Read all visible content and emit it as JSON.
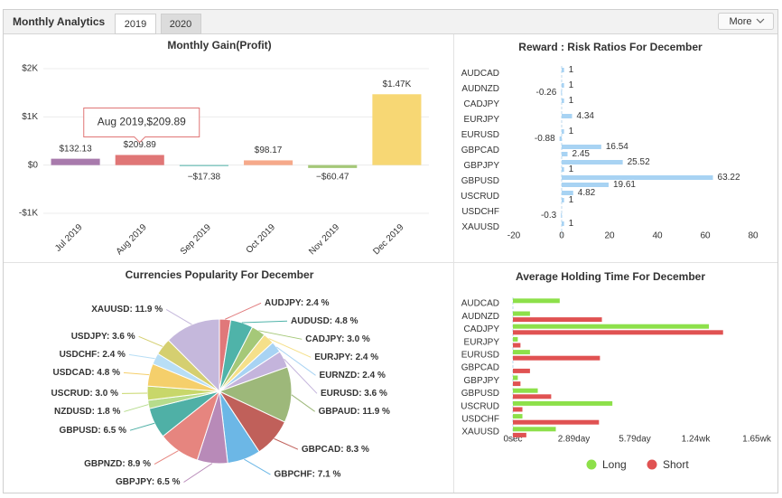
{
  "header": {
    "title": "Monthly Analytics",
    "tabs": [
      "2019",
      "2020"
    ],
    "button": "More"
  },
  "chart_data": [
    {
      "type": "bar",
      "title": "Monthly Gain(Profit)",
      "categories": [
        "Jul 2019",
        "Aug 2019",
        "Sep 2019",
        "Oct 2019",
        "Nov 2019",
        "Dec 2019"
      ],
      "values": [
        132.13,
        209.89,
        -17.38,
        98.17,
        -60.47,
        1470
      ],
      "value_labels": [
        "$132.13",
        "$209.89",
        "−$17.38",
        "$98.17",
        "−$60.47",
        "$1.47K"
      ],
      "colors": [
        "#a87aac",
        "#e07676",
        "#4fb3a9",
        "#f6a98a",
        "#a5c878",
        "#f7d774"
      ],
      "ylim": [
        -1000,
        2000
      ],
      "yticks": [
        {
          "value": -1000,
          "label": "-$1K"
        },
        {
          "value": 0,
          "label": "$0"
        },
        {
          "value": 1000,
          "label": "$1K"
        },
        {
          "value": 2000,
          "label": "$2K"
        }
      ],
      "grid": true,
      "annotation": "Aug 2019,$209.89"
    },
    {
      "type": "hbar",
      "title": "Reward : Risk Ratios For December",
      "categories": [
        "AUDCAD",
        "AUDNZD",
        "CADJPY",
        "EURJPY",
        "EURUSD",
        "GBPCAD",
        "GBPJPY",
        "GBPUSD",
        "USCRUD",
        "USDCHF",
        "XAUUSD"
      ],
      "series": [
        {
          "color": "#a8d3f3",
          "values": [
            1,
            1,
            1,
            4.34,
            1,
            16.54,
            25.52,
            63.22,
            4.82,
            null,
            1
          ]
        },
        {
          "color": "#a8d3f3",
          "values": [
            null,
            -0.26,
            null,
            null,
            -0.88,
            2.45,
            1,
            19.61,
            1,
            -0.3,
            null
          ]
        }
      ],
      "xlim": [
        -20,
        80
      ],
      "xticks": [
        -20,
        0,
        20,
        40,
        60,
        80
      ],
      "grid": false
    },
    {
      "type": "pie",
      "title": "Currencies Popularity For December",
      "values": [
        2.4,
        4.8,
        3.0,
        2.4,
        2.4,
        3.6,
        11.9,
        8.3,
        7.1,
        6.5,
        8.9,
        6.5,
        1.8,
        3.0,
        4.8,
        2.4,
        3.6,
        11.9
      ],
      "value_labels": [
        "AUDJPY: 2.4 %",
        "AUDUSD: 4.8 %",
        "CADJPY: 3.0 %",
        "EURJPY: 2.4 %",
        "EURNZD: 2.4 %",
        "EURUSD: 3.6 %",
        "GBPAUD: 11.9 %",
        "GBPCAD: 8.3 %",
        "GBPCHF: 7.1 %",
        "GBPJPY: 6.5 %",
        "GBPNZD: 8.9 %",
        "GBPUSD: 6.5 %",
        "NZDUSD: 1.8 %",
        "USCRUD: 3.0 %",
        "USDCAD: 4.8 %",
        "USDCHF: 2.4 %",
        "USDJPY: 3.6 %",
        "XAUUSD: 11.9 %"
      ],
      "colors": [
        "#e0787a",
        "#4fb3a9",
        "#a5c878",
        "#f5e08a",
        "#a8d3f3",
        "#c4b4dc",
        "#9db87a",
        "#c0605a",
        "#6cb7e6",
        "#b88ab8",
        "#e6857f",
        "#4fb0a6",
        "#b6dc8c",
        "#c8d76a",
        "#f5cf6b",
        "#b8def5",
        "#d5cf70",
        "#c5b8dc"
      ]
    },
    {
      "type": "hbar",
      "title": "Average Holding Time For December",
      "categories": [
        "AUDCAD",
        "AUDNZD",
        "CADJPY",
        "EURJPY",
        "EURUSD",
        "GBPCAD",
        "GBPJPY",
        "GBPUSD",
        "USCRUD",
        "USDCHF",
        "XAUUSD"
      ],
      "series": [
        {
          "name": "Long",
          "color": "#8de04a",
          "values": [
            192000,
            70000,
            804000,
            20000,
            70000,
            null,
            20000,
            102000,
            408000,
            39000,
            176000
          ]
        },
        {
          "name": "Short",
          "color": "#e05252",
          "values": [
            null,
            365000,
            862000,
            31000,
            357000,
            70000,
            31000,
            157000,
            39000,
            353000,
            55000
          ]
        }
      ],
      "xlim": [
        0,
        1000000
      ],
      "xticks": [
        {
          "value": 0,
          "label": "0sec"
        },
        {
          "value": 250000,
          "label": "2.89day"
        },
        {
          "value": 500000,
          "label": "5.79day"
        },
        {
          "value": 750000,
          "label": "1.24wk"
        },
        {
          "value": 1000000,
          "label": "1.65wk"
        }
      ],
      "grid": false,
      "legend": "bottom"
    }
  ]
}
